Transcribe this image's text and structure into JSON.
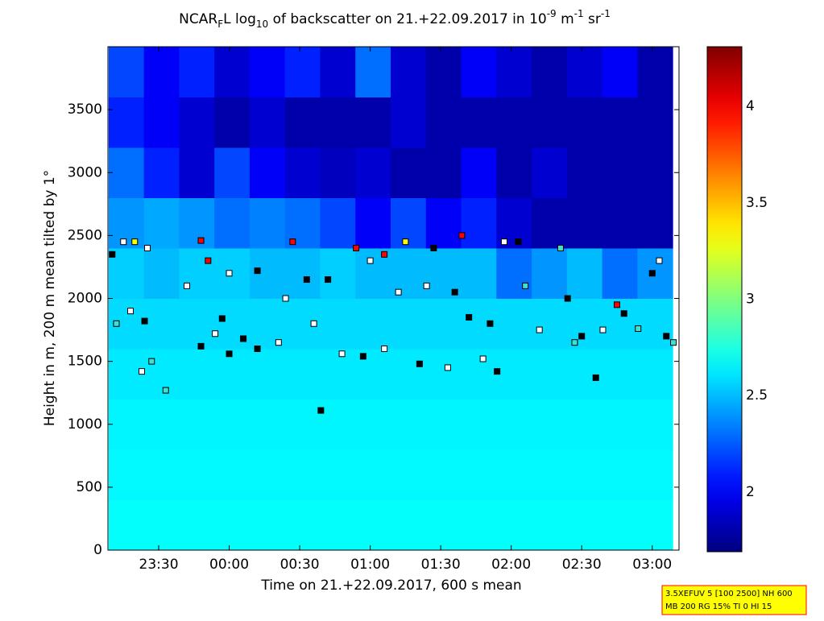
{
  "chart_data": {
    "type": "heatmap",
    "title": [
      "NCAR",
      "F",
      "L log",
      "10",
      " of backscatter on 21.+22.09.2017 in 10",
      "-9",
      " m",
      "-1",
      " sr",
      "-1"
    ],
    "x_label": "Time on 21.+22.09.2017, 600 s mean",
    "y_label": "Height in m, 200 m mean tilted by 1°",
    "xlim": [
      23.14,
      27.19
    ],
    "ylim": [
      0,
      4000
    ],
    "xticks": [
      {
        "value": 23.5,
        "label": "23:30"
      },
      {
        "value": 24,
        "label": "00:00"
      },
      {
        "value": 24.5,
        "label": "00:30"
      },
      {
        "value": 25,
        "label": "01:00"
      },
      {
        "value": 25.5,
        "label": "01:30"
      },
      {
        "value": 26,
        "label": "02:00"
      },
      {
        "value": 26.5,
        "label": "02:30"
      },
      {
        "value": 27,
        "label": "03:00"
      }
    ],
    "yticks": [
      0,
      500,
      1000,
      1500,
      2000,
      2500,
      3000,
      3500
    ],
    "clim": [
      1.69,
      4.31
    ],
    "cticks": [
      2,
      2.5,
      3,
      3.5,
      4
    ],
    "colormap": "jet",
    "x": [
      23.27,
      23.52,
      23.77,
      24.02,
      24.27,
      24.52,
      24.77,
      25.02,
      25.27,
      25.52,
      25.77,
      26.02,
      26.27,
      26.52,
      26.77,
      27.02
    ],
    "y": [
      200,
      600,
      1000,
      1400,
      1800,
      2200,
      2600,
      3000,
      3400,
      3800
    ],
    "z": [
      [
        2.68,
        2.68,
        2.68,
        2.68,
        2.68,
        2.68,
        2.68,
        2.68,
        2.68,
        2.68,
        2.68,
        2.68,
        2.68,
        2.68,
        2.68,
        2.68
      ],
      [
        2.66,
        2.66,
        2.66,
        2.66,
        2.66,
        2.66,
        2.66,
        2.66,
        2.66,
        2.66,
        2.66,
        2.66,
        2.66,
        2.66,
        2.66,
        2.66
      ],
      [
        2.65,
        2.65,
        2.65,
        2.65,
        2.65,
        2.65,
        2.65,
        2.65,
        2.65,
        2.65,
        2.65,
        2.65,
        2.65,
        2.65,
        2.65,
        2.65
      ],
      [
        2.62,
        2.62,
        2.62,
        2.62,
        2.62,
        2.62,
        2.62,
        2.62,
        2.62,
        2.62,
        2.62,
        2.62,
        2.62,
        2.62,
        2.62,
        2.62
      ],
      [
        2.58,
        2.58,
        2.58,
        2.58,
        2.58,
        2.58,
        2.58,
        2.58,
        2.58,
        2.58,
        2.58,
        2.58,
        2.58,
        2.58,
        2.58,
        2.58
      ],
      [
        2.55,
        2.5,
        2.55,
        2.55,
        2.5,
        2.5,
        2.55,
        2.5,
        2.5,
        2.5,
        2.5,
        2.3,
        2.4,
        2.5,
        2.3,
        2.4
      ],
      [
        2.4,
        2.45,
        2.4,
        2.3,
        2.35,
        2.3,
        2.2,
        2.0,
        2.2,
        2.0,
        2.1,
        1.9,
        1.8,
        1.8,
        1.8,
        1.8
      ],
      [
        2.3,
        2.1,
        1.9,
        2.2,
        2.0,
        1.9,
        1.85,
        1.9,
        1.8,
        1.8,
        2.0,
        1.8,
        1.9,
        1.8,
        1.8,
        1.8
      ],
      [
        2.1,
        2.0,
        1.9,
        1.8,
        1.9,
        1.8,
        1.8,
        1.8,
        1.9,
        1.8,
        1.8,
        1.8,
        1.8,
        1.8,
        1.8,
        1.8
      ],
      [
        2.2,
        2.0,
        2.1,
        1.9,
        2.0,
        2.1,
        1.9,
        2.3,
        1.9,
        1.8,
        2.0,
        1.9,
        1.8,
        1.9,
        2.0,
        1.8
      ]
    ],
    "markers": {
      "x": [
        23.17,
        23.25,
        23.33,
        23.42,
        23.2,
        23.3,
        23.4,
        23.38,
        23.45,
        23.55,
        23.8,
        23.7,
        23.8,
        23.9,
        23.95,
        23.85,
        24.0,
        24.0,
        24.1,
        24.2,
        24.2,
        24.35,
        24.45,
        24.4,
        24.55,
        24.6,
        24.65,
        24.7,
        24.8,
        24.9,
        24.95,
        25.0,
        25.1,
        25.1,
        25.2,
        25.25,
        25.35,
        25.4,
        25.45,
        25.55,
        25.6,
        25.65,
        25.7,
        25.8,
        25.85,
        25.9,
        25.95,
        26.05,
        26.1,
        26.2,
        26.35,
        26.4,
        26.45,
        26.5,
        26.6,
        26.65,
        26.75,
        26.8,
        26.9,
        27.0,
        27.05,
        27.1,
        27.15
      ],
      "y": [
        2350,
        2450,
        2450,
        2400,
        1800,
        1900,
        1820,
        1420,
        1500,
        1270,
        2460,
        2100,
        1620,
        1720,
        1840,
        2300,
        1560,
        2200,
        1680,
        1600,
        2220,
        1650,
        2450,
        2000,
        2150,
        1800,
        1110,
        2150,
        1560,
        2400,
        1540,
        2300,
        1600,
        2350,
        2050,
        2450,
        1480,
        2100,
        2400,
        1450,
        2050,
        2500,
        1850,
        1520,
        1800,
        1420,
        2450,
        2450,
        2100,
        1750,
        2400,
        2000,
        1650,
        1700,
        1370,
        1750,
        1950,
        1880,
        1760,
        2200,
        2300,
        1700,
        1650
      ],
      "colors": [
        "#000000",
        "#ffffff",
        "#ffff00",
        "#ffffff",
        "#40e0d0",
        "#ffffff",
        "#000000",
        "#ffffff",
        "#40e0d0",
        "#40e0d0",
        "#ff0000",
        "#ffffff",
        "#000000",
        "#ffffff",
        "#000000",
        "#ff0000",
        "#000000",
        "#ffffff",
        "#000000",
        "#000000",
        "#000000",
        "#ffffff",
        "#ff0000",
        "#ffffff",
        "#000000",
        "#ffffff",
        "#000000",
        "#000000",
        "#ffffff",
        "#ff0000",
        "#000000",
        "#ffffff",
        "#ffffff",
        "#ff0000",
        "#ffffff",
        "#ffff00",
        "#000000",
        "#ffffff",
        "#000000",
        "#ffffff",
        "#000000",
        "#ff0000",
        "#000000",
        "#ffffff",
        "#000000",
        "#000000",
        "#ffffff",
        "#000000",
        "#40e0d0",
        "#ffffff",
        "#40e0d0",
        "#000000",
        "#40e0d0",
        "#000000",
        "#000000",
        "#ffffff",
        "#ff0000",
        "#000000",
        "#40e0d0",
        "#000000",
        "#ffffff",
        "#000000",
        "#40e0d0"
      ]
    },
    "annotations": [
      "3.5XEFUV 5 [100 2500] NH 600",
      "MB 200 RG 15% TI 0 HI 15"
    ]
  }
}
